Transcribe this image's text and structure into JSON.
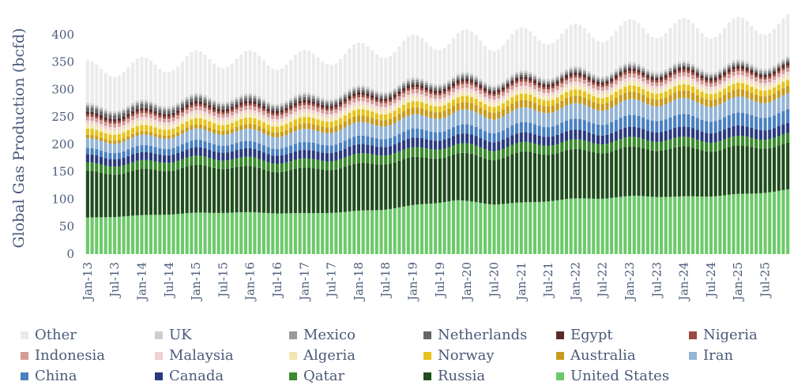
{
  "chart_data": {
    "type": "bar",
    "stacked": true,
    "title": "",
    "xlabel": "",
    "ylabel": "Global Gas Production (bcfd)",
    "ylim": [
      0,
      420
    ],
    "yticks": [
      0,
      50,
      100,
      150,
      200,
      250,
      300,
      350,
      400
    ],
    "x_start": "Jan-13",
    "x_end": "Dec-25",
    "months": 156,
    "x_tick_labels": [
      "Jan-13",
      "Jul-13",
      "Jan-14",
      "Jul-14",
      "Jan-15",
      "Jul-15",
      "Jan-16",
      "Jul-16",
      "Jan-17",
      "Jul-17",
      "Jan-18",
      "Jul-18",
      "Jan-19",
      "Jul-19",
      "Jan-20",
      "Jul-20",
      "Jan-21",
      "Jul-21",
      "Jan-22",
      "Jul-22",
      "Jan-23",
      "Jul-23",
      "Jan-24",
      "Jul-24",
      "Jan-25",
      "Jul-25"
    ],
    "grid": false,
    "legend_position": "bottom",
    "series": [
      {
        "name": "United States",
        "color": "#6cc96a",
        "jan": [
          66,
          69,
          72,
          75,
          76,
          75,
          74,
          77,
          81,
          90,
          98,
          91,
          94,
          100,
          102,
          106,
          104,
          106,
          110,
          117
        ]
      },
      {
        "name": "Russia",
        "color": "#1f4d1c",
        "jan": [
          82,
          80,
          82,
          84,
          83,
          78,
          80,
          82,
          86,
          84,
          84,
          84,
          90,
          87,
          86,
          87,
          88,
          85,
          85,
          82
        ]
      },
      {
        "name": "Qatar",
        "color": "#3a8a2e",
        "jan": [
          15,
          15,
          16,
          16,
          16,
          16,
          16,
          17,
          17,
          17,
          17,
          17,
          17,
          17,
          17,
          17,
          17,
          17,
          17,
          17
        ]
      },
      {
        "name": "Canada",
        "color": "#2a3a7e",
        "jan": [
          14,
          14,
          14,
          15,
          15,
          15,
          15,
          16,
          16,
          17,
          17,
          17,
          17,
          17,
          17,
          18,
          18,
          18,
          18,
          18
        ]
      },
      {
        "name": "China",
        "color": "#4a80c0",
        "jan": [
          11,
          12,
          12,
          13,
          13,
          13,
          14,
          15,
          15,
          16,
          16,
          17,
          18,
          19,
          20,
          21,
          22,
          22,
          23,
          24
        ]
      },
      {
        "name": "Iran",
        "color": "#93b4d6",
        "jan": [
          17,
          18,
          19,
          20,
          21,
          22,
          23,
          24,
          24,
          25,
          26,
          26,
          26,
          27,
          27,
          28,
          28,
          28,
          28,
          28
        ]
      },
      {
        "name": "Australia",
        "color": "#c89b1a",
        "jan": [
          6,
          6,
          6,
          7,
          8,
          9,
          10,
          11,
          12,
          12,
          13,
          13,
          13,
          13,
          13,
          13,
          13,
          13,
          13,
          13
        ]
      },
      {
        "name": "Norway",
        "color": "#e6c21a",
        "jan": [
          11,
          11,
          11,
          11,
          11,
          11,
          11,
          11,
          11,
          11,
          11,
          11,
          11,
          11,
          11,
          11,
          11,
          11,
          11,
          11
        ]
      },
      {
        "name": "Algeria",
        "color": "#f2e6b0",
        "jan": [
          8,
          8,
          8,
          8,
          8,
          8,
          8,
          8,
          8,
          8,
          8,
          8,
          8,
          8,
          8,
          8,
          8,
          8,
          8,
          8
        ]
      },
      {
        "name": "Malaysia",
        "color": "#f0d0d0",
        "jan": [
          6,
          6,
          6,
          6,
          6,
          6,
          6,
          6,
          6,
          6,
          6,
          6,
          6,
          6,
          6,
          6,
          6,
          6,
          6,
          6
        ]
      },
      {
        "name": "Indonesia",
        "color": "#d49a94",
        "jan": [
          7,
          7,
          7,
          7,
          7,
          7,
          7,
          7,
          7,
          7,
          7,
          7,
          7,
          7,
          7,
          7,
          7,
          7,
          7,
          7
        ]
      },
      {
        "name": "Nigeria",
        "color": "#9a4a3e",
        "jan": [
          4,
          4,
          4,
          4,
          4,
          4,
          4,
          4,
          4,
          4,
          4,
          4,
          4,
          4,
          4,
          4,
          4,
          4,
          4,
          4
        ]
      },
      {
        "name": "Egypt",
        "color": "#5a2a2a",
        "jan": [
          5,
          5,
          5,
          5,
          5,
          5,
          5,
          5,
          5,
          5,
          5,
          5,
          5,
          5,
          5,
          5,
          5,
          5,
          5,
          5
        ]
      },
      {
        "name": "Netherlands",
        "color": "#666666",
        "jan": [
          7,
          7,
          6,
          6,
          5,
          5,
          5,
          4,
          4,
          4,
          4,
          3,
          3,
          3,
          3,
          3,
          3,
          3,
          3,
          3
        ]
      },
      {
        "name": "Mexico",
        "color": "#9a9a9a",
        "jan": [
          4,
          4,
          4,
          4,
          4,
          4,
          4,
          4,
          4,
          4,
          4,
          4,
          4,
          4,
          4,
          4,
          4,
          4,
          4,
          4
        ]
      },
      {
        "name": "UK",
        "color": "#cfcfcf",
        "jan": [
          4,
          4,
          4,
          4,
          4,
          4,
          4,
          4,
          4,
          4,
          4,
          4,
          4,
          4,
          4,
          4,
          4,
          4,
          4,
          4
        ]
      },
      {
        "name": "Other",
        "color": "#ebebeb",
        "jan": [
          70,
          70,
          70,
          70,
          70,
          70,
          70,
          70,
          70,
          70,
          70,
          70,
          70,
          70,
          70,
          70,
          70,
          70,
          70,
          70
        ]
      }
    ],
    "seasonal_amplitude_percent": {
      "Other": 11,
      "default": 4
    },
    "legend_order": [
      "Other",
      "UK",
      "Mexico",
      "Netherlands",
      "Egypt",
      "Nigeria",
      "Indonesia",
      "Malaysia",
      "Algeria",
      "Norway",
      "Australia",
      "Iran",
      "China",
      "Canada",
      "Qatar",
      "Russia",
      "United States"
    ]
  }
}
